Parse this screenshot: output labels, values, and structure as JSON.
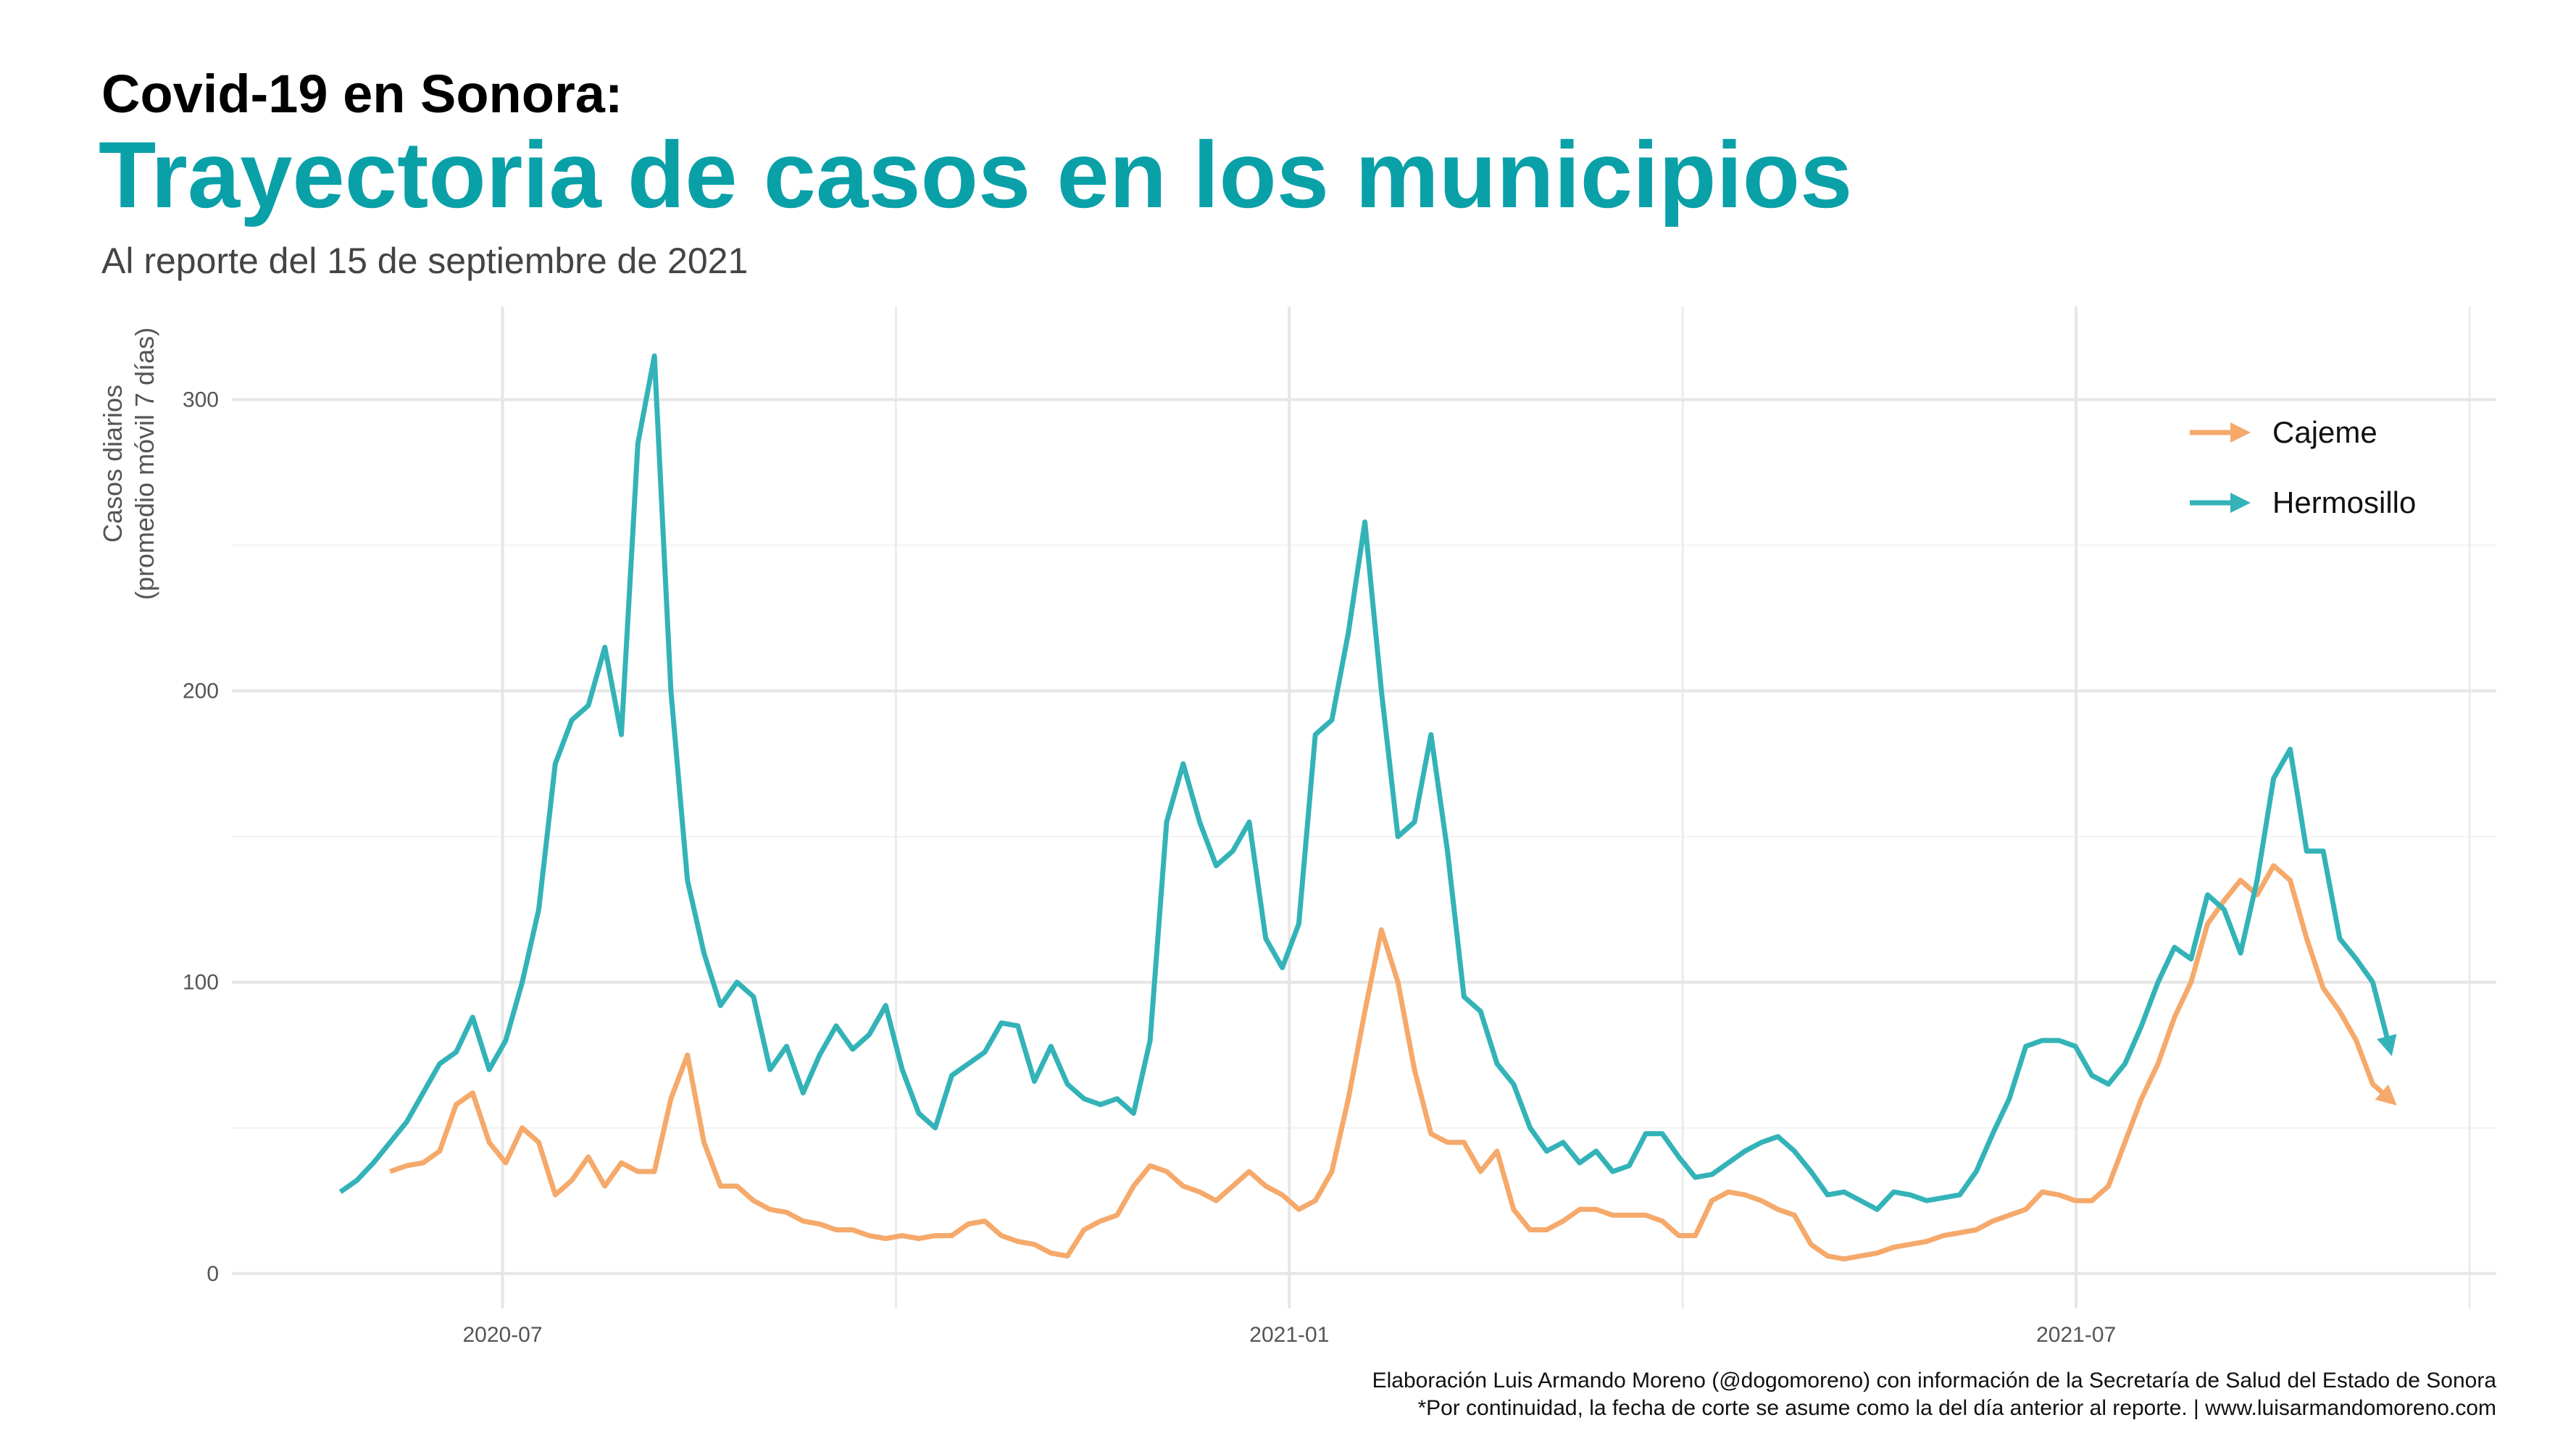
{
  "chart_data": {
    "type": "line",
    "title": "Covid-19 en Sonora:",
    "subtitle": "Trayectoria de casos en los municipios",
    "note": "Al reporte del 15 de septiembre de 2021",
    "y_label": [
      "Casos diarios",
      "(promedio móvil 7 días)"
    ],
    "caption": [
      "Elaboración Luis Armando Moreno (@dogomoreno) con información de la Secretaría de Salud del Estado de Sonora",
      "*Por continuidad, la fecha de corte se asume como la del día anterior al reporte. | www.luisarmandomoreno.com"
    ],
    "x": [
      2020.397,
      2020.4075,
      2020.418,
      2020.4285,
      2020.439,
      2020.4495,
      2020.46,
      2020.4705,
      2020.481,
      2020.4915,
      2020.502,
      2020.5125,
      2020.523,
      2020.5335,
      2020.544,
      2020.5545,
      2020.565,
      2020.5755,
      2020.586,
      2020.5965,
      2020.607,
      2020.6175,
      2020.628,
      2020.6385,
      2020.649,
      2020.6595,
      2020.67,
      2020.6805,
      2020.691,
      2020.7015,
      2020.712,
      2020.7225,
      2020.733,
      2020.7435,
      2020.754,
      2020.7645,
      2020.775,
      2020.7855,
      2020.796,
      2020.8065,
      2020.817,
      2020.8275,
      2020.838,
      2020.8485,
      2020.859,
      2020.8695,
      2020.88,
      2020.8905,
      2020.901,
      2020.9115,
      2020.922,
      2020.9325,
      2020.943,
      2020.9535,
      2020.964,
      2020.9745,
      2020.985,
      2020.9955,
      2021.006,
      2021.0165,
      2021.027,
      2021.0375,
      2021.048,
      2021.0585,
      2021.069,
      2021.0795,
      2021.09,
      2021.1005,
      2021.111,
      2021.1215,
      2021.132,
      2021.1425,
      2021.153,
      2021.1635,
      2021.174,
      2021.1845,
      2021.195,
      2021.2055,
      2021.216,
      2021.2265,
      2021.237,
      2021.2475,
      2021.258,
      2021.2685,
      2021.279,
      2021.2895,
      2021.3,
      2021.3105,
      2021.321,
      2021.3315,
      2021.342,
      2021.3525,
      2021.363,
      2021.3735,
      2021.384,
      2021.3945,
      2021.405,
      2021.4155,
      2021.426,
      2021.4365,
      2021.447,
      2021.4575,
      2021.468,
      2021.4785,
      2021.489,
      2021.4995,
      2021.51,
      2021.5205,
      2021.531,
      2021.5415,
      2021.552,
      2021.5625,
      2021.573,
      2021.5835,
      2021.594,
      2021.6045,
      2021.615,
      2021.6255,
      2021.636,
      2021.6465,
      2021.657,
      2021.6675,
      2021.678,
      2021.6885,
      2021.699
    ],
    "series": [
      {
        "name": "Cajeme",
        "color": "#f5a96b",
        "values": [
          null,
          null,
          null,
          35,
          37,
          38,
          42,
          58,
          62,
          45,
          38,
          50,
          45,
          27,
          32,
          40,
          30,
          38,
          35,
          35,
          60,
          75,
          45,
          30,
          30,
          25,
          22,
          21,
          18,
          17,
          15,
          15,
          13,
          12,
          13,
          12,
          13,
          13,
          17,
          18,
          13,
          11,
          10,
          7,
          6,
          15,
          18,
          20,
          30,
          37,
          35,
          30,
          28,
          25,
          30,
          35,
          30,
          27,
          22,
          25,
          35,
          60,
          90,
          118,
          100,
          70,
          48,
          45,
          45,
          35,
          42,
          22,
          15,
          15,
          18,
          22,
          22,
          20,
          20,
          20,
          18,
          13,
          13,
          25,
          28,
          27,
          25,
          22,
          20,
          10,
          6,
          5,
          6,
          7,
          9,
          10,
          11,
          13,
          14,
          15,
          18,
          20,
          22,
          28,
          27,
          25,
          25,
          30,
          45,
          60,
          72,
          88,
          100,
          120,
          128,
          135,
          130,
          140,
          135,
          115,
          98,
          90,
          80,
          65,
          60
        ]
      },
      {
        "name": "Hermosillo",
        "color": "#33b3b8",
        "values": [
          28,
          32,
          38,
          45,
          52,
          62,
          72,
          76,
          88,
          70,
          80,
          100,
          125,
          175,
          190,
          195,
          215,
          185,
          285,
          315,
          200,
          135,
          110,
          92,
          100,
          95,
          70,
          78,
          62,
          75,
          85,
          77,
          82,
          92,
          70,
          55,
          50,
          68,
          72,
          76,
          86,
          85,
          66,
          78,
          65,
          60,
          58,
          60,
          55,
          80,
          155,
          175,
          155,
          140,
          145,
          155,
          115,
          105,
          120,
          185,
          190,
          220,
          258,
          200,
          150,
          155,
          185,
          145,
          95,
          90,
          72,
          65,
          50,
          42,
          45,
          38,
          42,
          35,
          37,
          48,
          48,
          40,
          33,
          34,
          38,
          42,
          45,
          47,
          42,
          35,
          27,
          28,
          25,
          22,
          28,
          27,
          25,
          26,
          27,
          35,
          48,
          60,
          78,
          80,
          80,
          78,
          68,
          65,
          72,
          85,
          100,
          112,
          108,
          130,
          125,
          110,
          135,
          170,
          180,
          145,
          145,
          115,
          108,
          100,
          78
        ]
      }
    ],
    "xlim": [
      2020.328,
      2021.767
    ],
    "xticks": [
      {
        "value": 2020.5,
        "label": "2020-07"
      },
      {
        "value": 2021.0,
        "label": "2021-01"
      },
      {
        "value": 2021.5,
        "label": "2021-07"
      }
    ],
    "ylim": [
      -12,
      332
    ],
    "yticks": [
      0,
      100,
      200,
      300
    ],
    "grid": true,
    "legend": "top-right"
  }
}
